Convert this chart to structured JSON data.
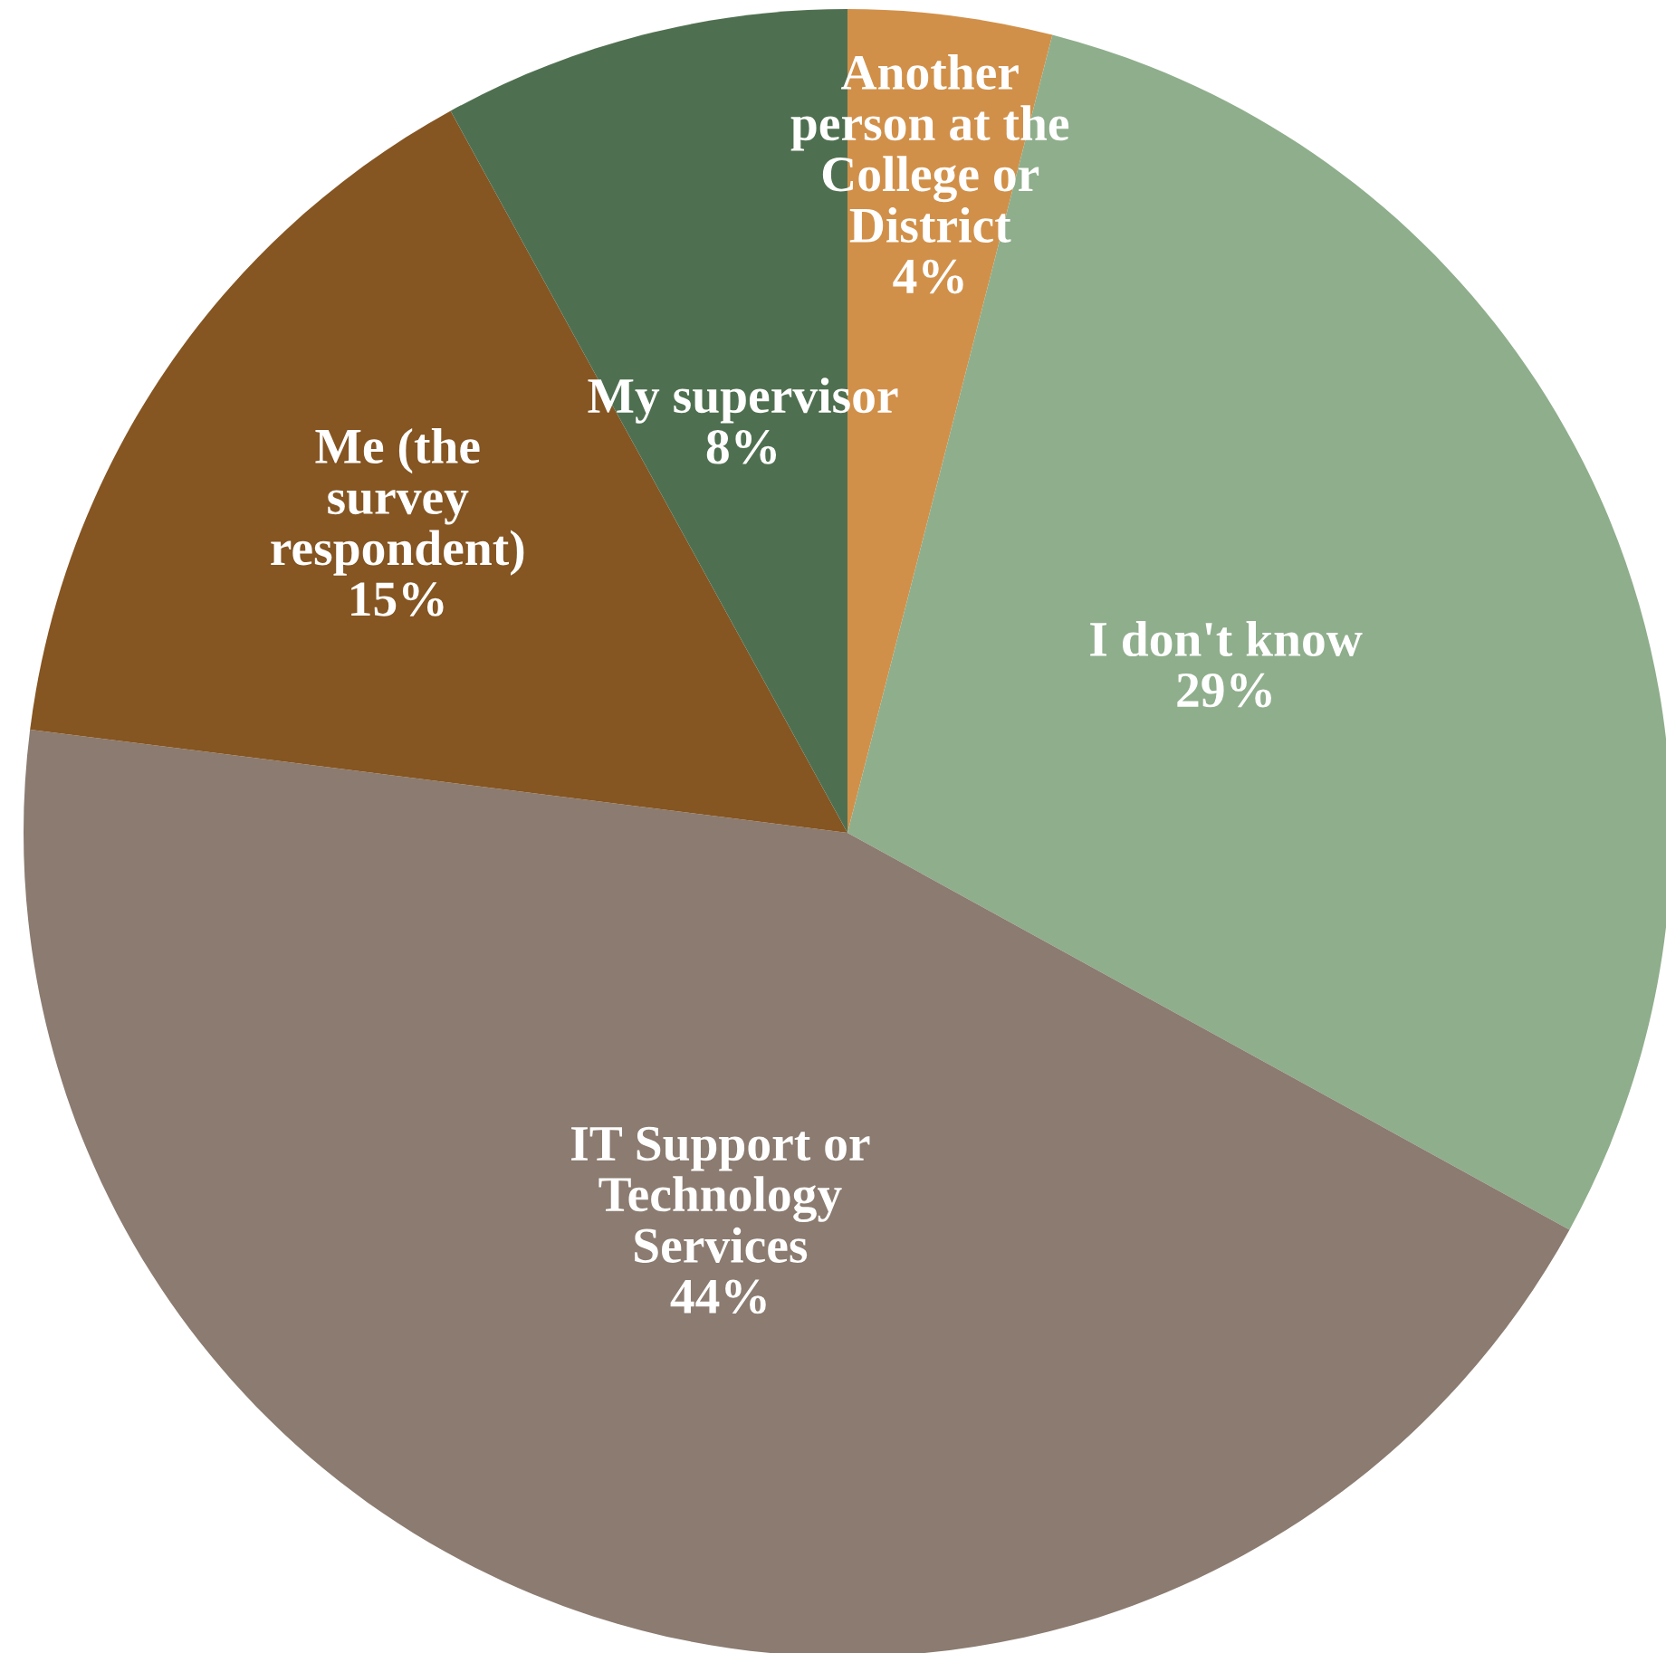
{
  "chart_data": {
    "type": "pie",
    "categories": [
      "Another\nperson at the\nCollege or\nDistrict",
      "I don't know",
      "IT Support or\nTechnology\nServices",
      "Me (the\nsurvey\nrespondent)",
      "My supervisor"
    ],
    "values": [
      4,
      29,
      44,
      15,
      8
    ],
    "value_labels": [
      "4%",
      "29%",
      "44%",
      "15%",
      "8%"
    ],
    "colors": [
      "#d19049",
      "#8fae8c",
      "#8b7b70",
      "#855522",
      "#4f7050"
    ]
  }
}
